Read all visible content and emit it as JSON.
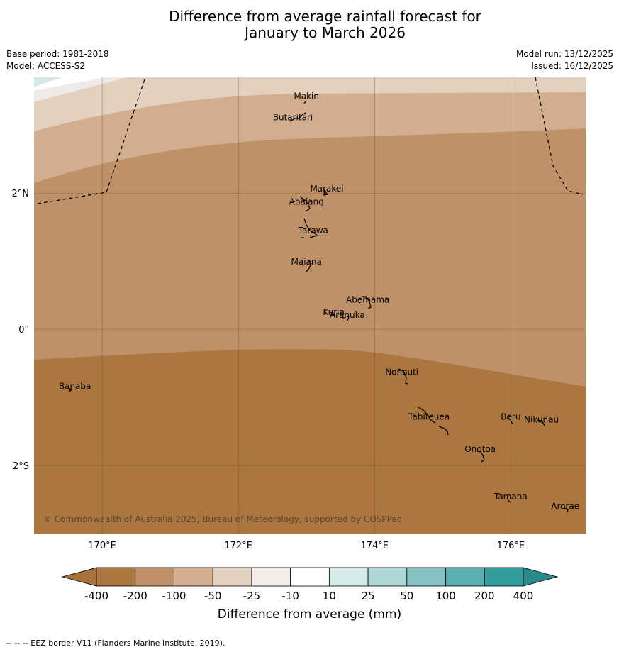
{
  "title": {
    "line1": "Difference from average rainfall forecast for",
    "line2": "January to March 2026"
  },
  "meta": {
    "base_period": "Base period: 1981-2018",
    "model": "Model: ACCESS-S2",
    "model_run": "Model run: 13/12/2025",
    "issued": "Issued: 16/12/2025"
  },
  "map": {
    "lon_range": [
      169.0,
      177.1
    ],
    "lat_range": [
      -3.0,
      3.7
    ],
    "lon_ticks": [
      {
        "lon": 170,
        "label": "170°E"
      },
      {
        "lon": 172,
        "label": "172°E"
      },
      {
        "lon": 174,
        "label": "174°E"
      },
      {
        "lon": 176,
        "label": "176°E"
      }
    ],
    "lat_ticks": [
      {
        "lat": 2,
        "label": "2°N"
      },
      {
        "lat": 0,
        "label": "0°"
      },
      {
        "lat": -2,
        "label": "2°S"
      }
    ],
    "copyright": "© Commonwealth of Australia 2025, Bureau of Meteorology, supported by COSPPac",
    "places": [
      {
        "name": "Makin",
        "lon": 173.0,
        "lat": 3.38
      },
      {
        "name": "Butaritari",
        "lon": 172.8,
        "lat": 3.07
      },
      {
        "name": "Marakei",
        "lon": 173.3,
        "lat": 2.02
      },
      {
        "name": "Abaiang",
        "lon": 173.0,
        "lat": 1.83
      },
      {
        "name": "Tarawa",
        "lon": 173.1,
        "lat": 1.41
      },
      {
        "name": "Maiana",
        "lon": 173.0,
        "lat": 0.95
      },
      {
        "name": "Abemama",
        "lon": 173.9,
        "lat": 0.39
      },
      {
        "name": "Kuria",
        "lon": 173.4,
        "lat": 0.21
      },
      {
        "name": "Aranuka",
        "lon": 173.6,
        "lat": 0.17
      },
      {
        "name": "Banaba",
        "lon": 169.6,
        "lat": -0.88
      },
      {
        "name": "Nonouti",
        "lon": 174.4,
        "lat": -0.67
      },
      {
        "name": "Tabiteuea",
        "lon": 174.8,
        "lat": -1.33
      },
      {
        "name": "Beru",
        "lon": 176.0,
        "lat": -1.33
      },
      {
        "name": "Nikunau",
        "lon": 176.45,
        "lat": -1.37
      },
      {
        "name": "Onotoa",
        "lon": 175.55,
        "lat": -1.8
      },
      {
        "name": "Tamana",
        "lon": 176.0,
        "lat": -2.5
      },
      {
        "name": "Arorae",
        "lon": 176.8,
        "lat": -2.64
      }
    ]
  },
  "legend": {
    "label": "Difference from average (mm)",
    "ticks": [
      "-400",
      "-200",
      "-100",
      "-50",
      "-25",
      "-10",
      "10",
      "25",
      "50",
      "100",
      "200",
      "400"
    ],
    "colors": [
      "#a9713b",
      "#ac773f",
      "#c09169",
      "#d4ae8f",
      "#e3d1c0",
      "#f1ece8",
      "#ffffff",
      "#d5e9e8",
      "#add7d6",
      "#84c1c0",
      "#5baeae",
      "#339c9c",
      "#2a8a8a"
    ]
  },
  "footnote": "--  --  -- EEZ border V11 (Flanders Marine Institute, 2019)."
}
